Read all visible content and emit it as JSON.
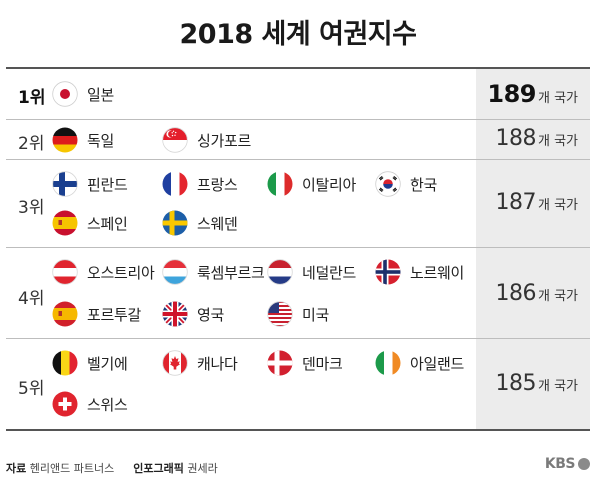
{
  "title": "2018 세계 여권지수",
  "unit": "개 국가",
  "rows": [
    {
      "rank": "1위",
      "count": "189",
      "countries": [
        {
          "name": "일본",
          "flag": "japan-flag-icon"
        }
      ]
    },
    {
      "rank": "2위",
      "count": "188",
      "countries": [
        {
          "name": "독일",
          "flag": "germany-flag-icon"
        },
        {
          "name": "싱가포르",
          "flag": "singapore-flag-icon"
        }
      ]
    },
    {
      "rank": "3위",
      "count": "187",
      "countries": [
        {
          "name": "핀란드",
          "flag": "finland-flag-icon"
        },
        {
          "name": "프랑스",
          "flag": "france-flag-icon"
        },
        {
          "name": "이탈리아",
          "flag": "italy-flag-icon"
        },
        {
          "name": "한국",
          "flag": "korea-flag-icon"
        },
        {
          "name": "스페인",
          "flag": "spain-flag-icon"
        },
        {
          "name": "스웨덴",
          "flag": "sweden-flag-icon"
        }
      ]
    },
    {
      "rank": "4위",
      "count": "186",
      "countries": [
        {
          "name": "오스트리아",
          "flag": "austria-flag-icon"
        },
        {
          "name": "룩셈부르크",
          "flag": "luxembourg-flag-icon"
        },
        {
          "name": "네덜란드",
          "flag": "netherlands-flag-icon"
        },
        {
          "name": "노르웨이",
          "flag": "norway-flag-icon"
        },
        {
          "name": "포르투갈",
          "flag": "portugal-flag-icon"
        },
        {
          "name": "영국",
          "flag": "uk-flag-icon"
        },
        {
          "name": "미국",
          "flag": "usa-flag-icon"
        }
      ]
    },
    {
      "rank": "5위",
      "count": "185",
      "countries": [
        {
          "name": "벨기에",
          "flag": "belgium-flag-icon"
        },
        {
          "name": "캐나다",
          "flag": "canada-flag-icon"
        },
        {
          "name": "덴마크",
          "flag": "denmark-flag-icon"
        },
        {
          "name": "아일랜드",
          "flag": "ireland-flag-icon"
        },
        {
          "name": "스위스",
          "flag": "switzerland-flag-icon"
        }
      ]
    }
  ],
  "footer": {
    "source_label": "자료",
    "source": "헨리앤드 파트너스",
    "graphic_label": "인포그래픽",
    "graphic": "권세라"
  },
  "logo": "KBS"
}
